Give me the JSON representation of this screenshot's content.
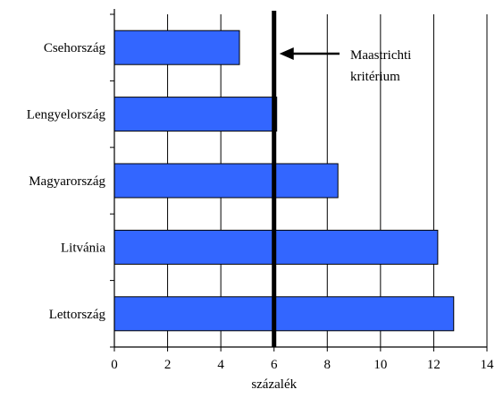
{
  "chart_data": {
    "type": "bar",
    "orientation": "horizontal",
    "categories": [
      "Csehország",
      "Lengyelország",
      "Magyarország",
      "Litvánia",
      "Lettország"
    ],
    "values": [
      4.7,
      6.1,
      8.4,
      12.15,
      12.75
    ],
    "xlabel": "százalék",
    "xlim": [
      0,
      14
    ],
    "xticks": [
      0,
      2,
      4,
      6,
      8,
      10,
      12,
      14
    ],
    "grid": "vertical",
    "bar_color": "#3366ff",
    "reference_line": {
      "value": 6,
      "color": "#000000",
      "annotation": "Maastrichti kritérium",
      "annotation_lines": [
        "Maastrichti",
        "kritérium"
      ]
    }
  }
}
